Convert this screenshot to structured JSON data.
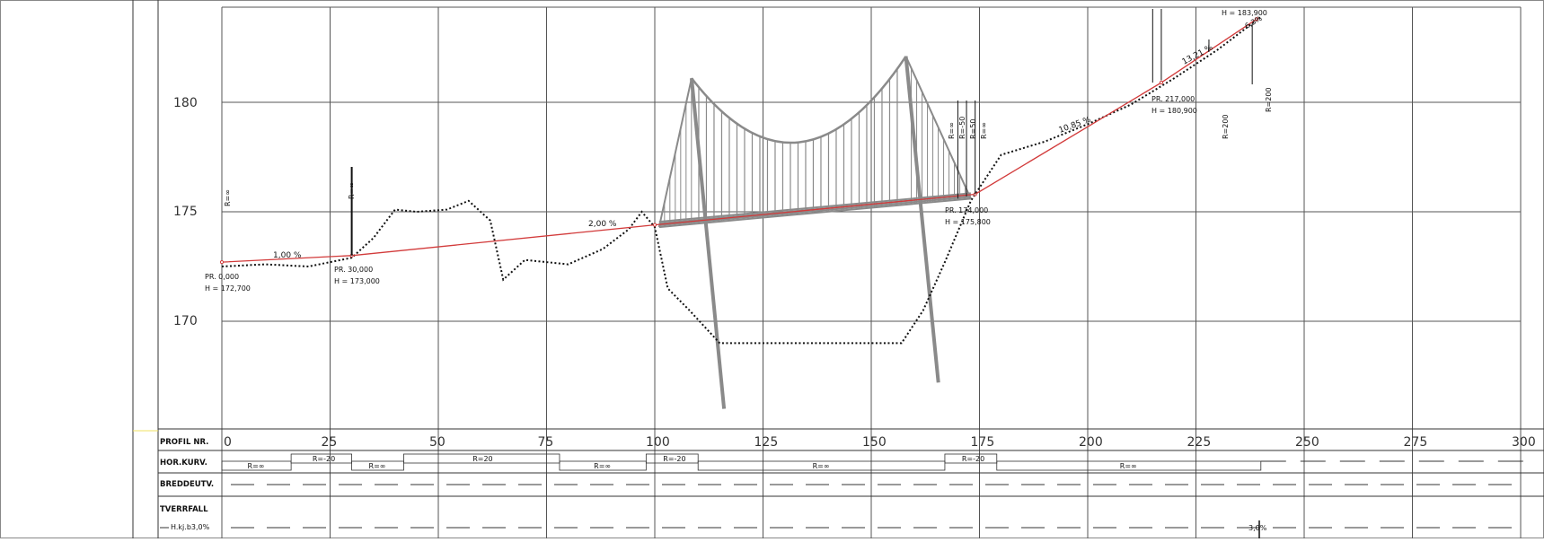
{
  "chart_data": {
    "type": "line",
    "x_ticks": [
      "0",
      "25",
      "50",
      "75",
      "100",
      "125",
      "150",
      "175",
      "200",
      "225",
      "250",
      "275",
      "300"
    ],
    "y_ticks": [
      "170",
      "175",
      "180"
    ],
    "xlim": [
      0,
      300
    ],
    "ylim": [
      165,
      184
    ],
    "grid": true,
    "design_line": [
      {
        "x": 0,
        "y": 172.7
      },
      {
        "x": 30,
        "y": 173.0
      },
      {
        "x": 100,
        "y": 174.4
      },
      {
        "x": 174,
        "y": 175.8
      },
      {
        "x": 217,
        "y": 180.9
      },
      {
        "x": 239,
        "y": 183.8
      }
    ],
    "terrain": [
      {
        "x": 0,
        "y": 172.5
      },
      {
        "x": 10,
        "y": 172.6
      },
      {
        "x": 20,
        "y": 172.5
      },
      {
        "x": 30,
        "y": 172.9
      },
      {
        "x": 35,
        "y": 173.8
      },
      {
        "x": 40,
        "y": 175.1
      },
      {
        "x": 45,
        "y": 175.0
      },
      {
        "x": 52,
        "y": 175.1
      },
      {
        "x": 57,
        "y": 175.5
      },
      {
        "x": 62,
        "y": 174.6
      },
      {
        "x": 65,
        "y": 171.9
      },
      {
        "x": 70,
        "y": 172.8
      },
      {
        "x": 80,
        "y": 172.6
      },
      {
        "x": 88,
        "y": 173.3
      },
      {
        "x": 94,
        "y": 174.2
      },
      {
        "x": 97,
        "y": 175.0
      },
      {
        "x": 100,
        "y": 174.3
      },
      {
        "x": 103,
        "y": 171.5
      },
      {
        "x": 108,
        "y": 170.5
      },
      {
        "x": 115,
        "y": 169.0
      },
      {
        "x": 157,
        "y": 169.0
      },
      {
        "x": 162,
        "y": 170.5
      },
      {
        "x": 167,
        "y": 172.7
      },
      {
        "x": 173,
        "y": 175.5
      },
      {
        "x": 180,
        "y": 177.6
      },
      {
        "x": 190,
        "y": 178.2
      },
      {
        "x": 200,
        "y": 179.0
      },
      {
        "x": 210,
        "y": 179.9
      },
      {
        "x": 220,
        "y": 181.1
      },
      {
        "x": 230,
        "y": 182.4
      },
      {
        "x": 240,
        "y": 183.9
      }
    ],
    "annotations": {
      "grade_1": "1,00 %",
      "grade_2": "2,00 %",
      "grade_3": "10,85 %",
      "grade_4": "13,21 %",
      "grade_5": "6,3%",
      "pr_0": "PR. 0,000",
      "h_0": "H = 172,700",
      "pr_30": "PR. 30,000",
      "h_30": "H = 173,000",
      "pr_174": "PR. 174,000",
      "h_174": "H = 175,800",
      "pr_217": "PR. 217,000",
      "h_217": "H = 180,900",
      "h_top": "H = 183,900",
      "r_inf": "R=∞",
      "r_inf_a": "R=∞",
      "r_inf_b": "R=∞",
      "r_inf_c": "R=∞",
      "r_50a": "R=-50",
      "r_50b": "R=50",
      "r_200": "R=200",
      "r_200b": "R=200"
    }
  },
  "table": {
    "row_labels": {
      "profil": "PROFIL NR.",
      "horkurv": "HOR.KURV.",
      "breddeutv": "BREDDEUTV.",
      "tverrfall": "TVERRFALL",
      "hkj": "H.kj.b3,0%"
    },
    "hor_curves": [
      "R=∞",
      "R=-20",
      "R=∞",
      "R=20",
      "R=∞",
      "R=-20",
      "R=∞",
      "R=-20",
      "R=∞"
    ],
    "tverrfall_value": "3,0%"
  },
  "colors": {
    "grid": "#555555",
    "design_line": "#d23a3a",
    "terrain": "#111111",
    "bridge": "#8a8a8a",
    "accent_line": "#f0e060"
  }
}
